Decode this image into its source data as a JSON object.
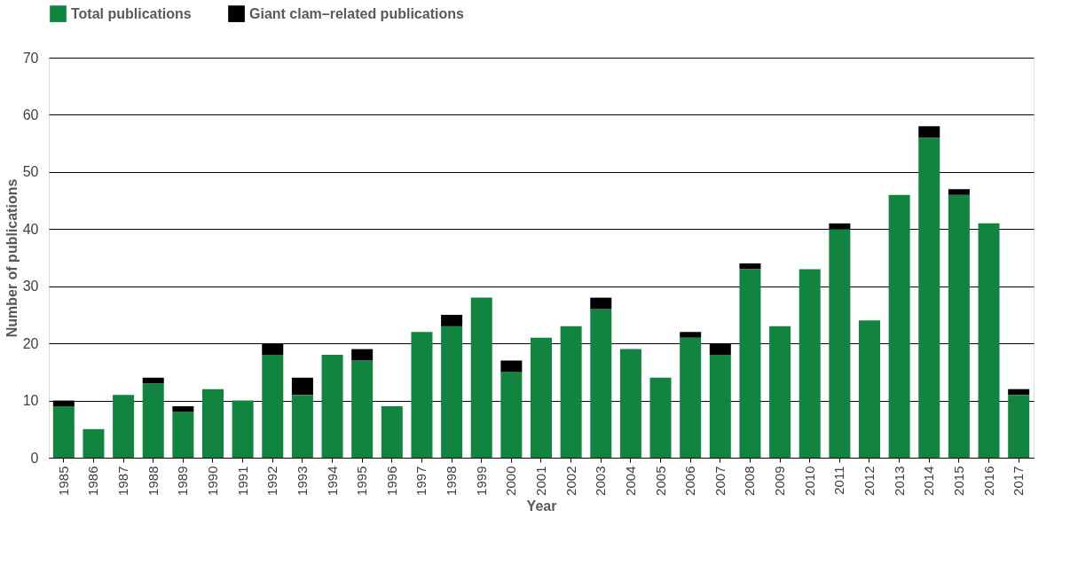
{
  "chart_data": {
    "type": "bar",
    "stacked": true,
    "xlabel": "Year",
    "ylabel": "Number of publications",
    "categories": [
      "1985",
      "1986",
      "1987",
      "1988",
      "1989",
      "1990",
      "1991",
      "1992",
      "1993",
      "1994",
      "1995",
      "1996",
      "1997",
      "1998",
      "1999",
      "2000",
      "2001",
      "2002",
      "2003",
      "2004",
      "2005",
      "2006",
      "2007",
      "2008",
      "2009",
      "2010",
      "2011",
      "2012",
      "2013",
      "2014",
      "2015",
      "2016",
      "2017"
    ],
    "series": [
      {
        "name": "Total publications",
        "color": "#118540",
        "values": [
          9,
          5,
          11,
          13,
          8,
          12,
          10,
          18,
          11,
          18,
          17,
          9,
          22,
          23,
          28,
          15,
          21,
          23,
          26,
          19,
          14,
          21,
          18,
          33,
          23,
          33,
          40,
          24,
          46,
          56,
          46,
          41,
          11
        ]
      },
      {
        "name": "Giant clam–related publications",
        "color": "#000000",
        "values": [
          1,
          0,
          0,
          1,
          1,
          0,
          0,
          2,
          3,
          0,
          2,
          0,
          0,
          2,
          0,
          2,
          0,
          0,
          2,
          0,
          0,
          1,
          2,
          1,
          0,
          0,
          1,
          0,
          0,
          2,
          1,
          0,
          1
        ]
      }
    ],
    "ylim": [
      0,
      70
    ],
    "yticks": [
      0,
      10,
      20,
      30,
      40,
      50,
      60,
      70
    ],
    "grid": "y",
    "legend": "top left"
  }
}
